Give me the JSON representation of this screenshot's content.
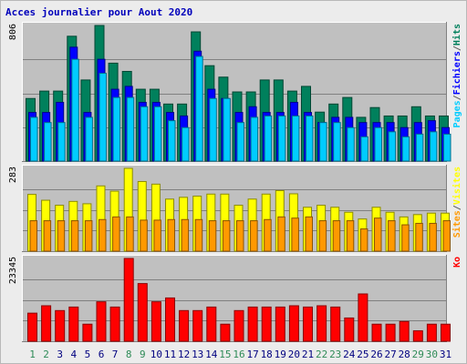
{
  "chart_data": [
    {
      "type": "bar",
      "title": "Acces journalier pour Aout 2020",
      "x": [
        "1",
        "2",
        "3",
        "4",
        "5",
        "6",
        "7",
        "8",
        "9",
        "10",
        "11",
        "12",
        "13",
        "14",
        "15",
        "16",
        "17",
        "18",
        "19",
        "20",
        "21",
        "22",
        "23",
        "24",
        "25",
        "26",
        "27",
        "28",
        "29",
        "30",
        "31"
      ],
      "weekend_days": [
        "1",
        "2",
        "8",
        "9",
        "15",
        "16",
        "22",
        "23",
        "29",
        "30"
      ],
      "ymax_label": "806",
      "ymax": 806,
      "legend": [
        {
          "label": "Pages",
          "color": "#00ccff"
        },
        {
          "label": "/",
          "color": "#606060"
        },
        {
          "label": "Fichiers",
          "color": "#0000ff"
        },
        {
          "label": "/",
          "color": "#606060"
        },
        {
          "label": "Hits",
          "color": "#00805c"
        }
      ],
      "series": [
        {
          "name": "Hits",
          "color": "#00805c",
          "values": [
            372,
            416,
            416,
            742,
            482,
            806,
            582,
            533,
            427,
            427,
            339,
            339,
            768,
            567,
            499,
            411,
            411,
            482,
            482,
            416,
            444,
            291,
            339,
            378,
            260,
            318,
            268,
            268,
            323,
            268,
            268
          ]
        },
        {
          "name": "Fichiers",
          "color": "#0000ff",
          "values": [
            289,
            289,
            349,
            677,
            289,
            605,
            427,
            444,
            349,
            349,
            289,
            268,
            653,
            427,
            372,
            289,
            323,
            289,
            289,
            349,
            289,
            229,
            260,
            260,
            229,
            229,
            229,
            199,
            229,
            240,
            199
          ]
        },
        {
          "name": "Pages",
          "color": "#00ccff",
          "values": [
            260,
            229,
            229,
            605,
            260,
            522,
            378,
            378,
            323,
            323,
            240,
            199,
            622,
            372,
            372,
            229,
            260,
            268,
            268,
            268,
            268,
            229,
            229,
            199,
            144,
            199,
            174,
            144,
            160,
            174,
            160
          ]
        }
      ]
    },
    {
      "type": "bar",
      "ymax_label": "283",
      "ymax": 283,
      "legend": [
        {
          "label": "Sites",
          "color": "#ff9900"
        },
        {
          "label": "/",
          "color": "#606060"
        },
        {
          "label": "Visites",
          "color": "#ffff00"
        }
      ],
      "series": [
        {
          "name": "Visites",
          "color": "#ffff00",
          "values": [
            194,
            174,
            157,
            170,
            162,
            223,
            205,
            283,
            238,
            229,
            178,
            184,
            188,
            195,
            195,
            157,
            178,
            195,
            207,
            196,
            150,
            157,
            150,
            133,
            110,
            150,
            133,
            117,
            125,
            130,
            130
          ]
        },
        {
          "name": "Sites",
          "color": "#ff9900",
          "values": [
            104,
            104,
            104,
            104,
            104,
            108,
            117,
            117,
            106,
            106,
            108,
            108,
            108,
            104,
            104,
            104,
            104,
            108,
            117,
            113,
            117,
            104,
            104,
            104,
            76,
            113,
            104,
            90,
            95,
            95,
            104
          ]
        }
      ]
    },
    {
      "type": "bar",
      "ymax_label": "23345",
      "ymax": 23345,
      "legend": [
        {
          "label": "Ko",
          "color": "#ff0000"
        }
      ],
      "series": [
        {
          "name": "Ko",
          "color": "#ff0000",
          "values": [
            7919,
            10006,
            8646,
            9642,
            4812,
            11121,
            9642,
            23345,
            16262,
            11121,
            12208,
            8646,
            8646,
            9642,
            4812,
            8646,
            9642,
            9642,
            9642,
            10006,
            9642,
            10006,
            9642,
            6560,
            13339,
            4812,
            4812,
            5576,
            2941,
            4812,
            4812
          ]
        }
      ]
    }
  ]
}
